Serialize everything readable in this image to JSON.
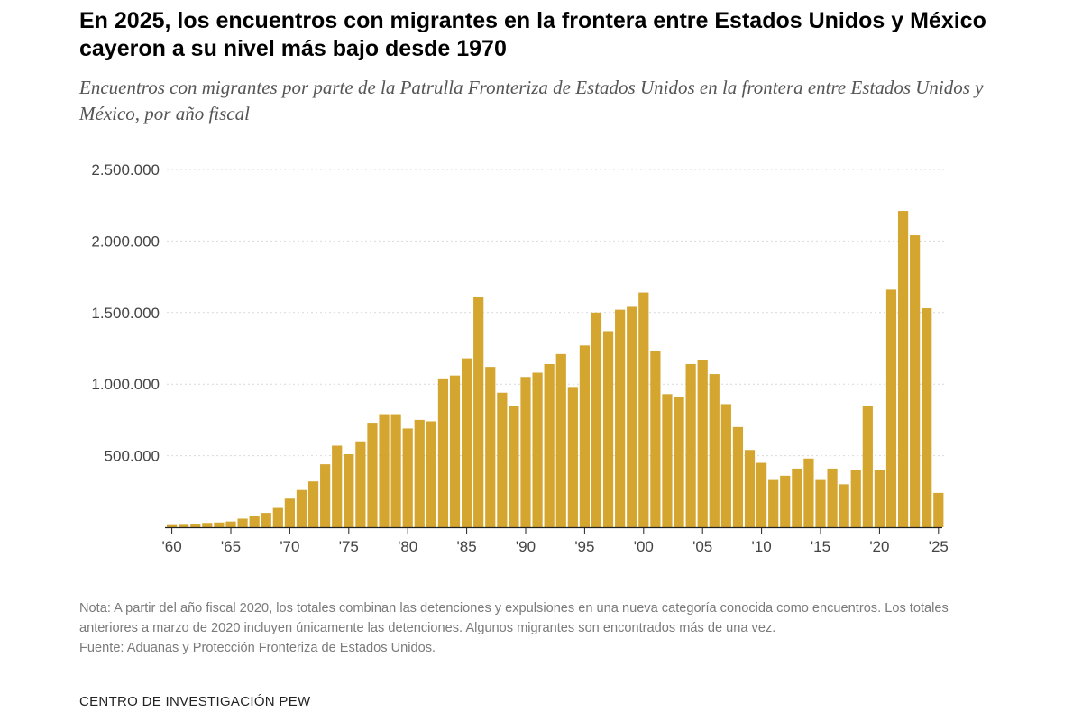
{
  "header": {
    "title": "En 2025, los encuentros con migrantes en la frontera entre Estados Unidos y México cayeron a su nivel más bajo desde 1970",
    "subtitle": "Encuentros con migrantes por parte de la Patrulla Fronteriza de Estados Unidos en la frontera entre Estados Unidos y México, por año fiscal"
  },
  "footer": {
    "note": "Nota: A partir del año fiscal 2020, los totales combinan las detenciones y expulsiones en una nueva categoría conocida como encuentros. Los totales anteriores a marzo de 2020 incluyen únicamente las detenciones. Algunos migrantes son encontrados más de una vez.",
    "source": "Fuente: Aduanas y Protección Fronteriza de Estados Unidos.",
    "organization": "CENTRO DE INVESTIGACIÓN PEW"
  },
  "colors": {
    "bar": "#d4a52f",
    "grid": "#d9d9d9",
    "axis": "#222222"
  },
  "chart_data": {
    "type": "bar",
    "title": "En 2025, los encuentros con migrantes en la frontera entre Estados Unidos y México cayeron a su nivel más bajo desde 1970",
    "xlabel": "",
    "ylabel": "",
    "ylim": [
      0,
      2500000
    ],
    "grid": true,
    "y_ticks": [
      {
        "value": 500000,
        "label": "500.000"
      },
      {
        "value": 1000000,
        "label": "1.000.000"
      },
      {
        "value": 1500000,
        "label": "1.500.000"
      },
      {
        "value": 2000000,
        "label": "2.000.000"
      },
      {
        "value": 2500000,
        "label": "2.500.000"
      }
    ],
    "x_ticks": [
      {
        "year": 1960,
        "label": "'60"
      },
      {
        "year": 1965,
        "label": "'65"
      },
      {
        "year": 1970,
        "label": "'70"
      },
      {
        "year": 1975,
        "label": "'75"
      },
      {
        "year": 1980,
        "label": "'80"
      },
      {
        "year": 1985,
        "label": "'85"
      },
      {
        "year": 1990,
        "label": "'90"
      },
      {
        "year": 1995,
        "label": "'95"
      },
      {
        "year": 2000,
        "label": "'00"
      },
      {
        "year": 2005,
        "label": "'05"
      },
      {
        "year": 2010,
        "label": "'10"
      },
      {
        "year": 2015,
        "label": "'15"
      },
      {
        "year": 2020,
        "label": "'20"
      },
      {
        "year": 2025,
        "label": "'25"
      }
    ],
    "categories": [
      1960,
      1961,
      1962,
      1963,
      1964,
      1965,
      1966,
      1967,
      1968,
      1969,
      1970,
      1971,
      1972,
      1973,
      1974,
      1975,
      1976,
      1977,
      1978,
      1979,
      1980,
      1981,
      1982,
      1983,
      1984,
      1985,
      1986,
      1987,
      1988,
      1989,
      1990,
      1991,
      1992,
      1993,
      1994,
      1995,
      1996,
      1997,
      1998,
      1999,
      2000,
      2001,
      2002,
      2003,
      2004,
      2005,
      2006,
      2007,
      2008,
      2009,
      2010,
      2011,
      2012,
      2013,
      2014,
      2015,
      2016,
      2017,
      2018,
      2019,
      2020,
      2021,
      2022,
      2023,
      2024,
      2025
    ],
    "series": [
      {
        "name": "Encuentros",
        "values": [
          21000,
          23000,
          25000,
          30000,
          33000,
          40000,
          60000,
          80000,
          100000,
          135000,
          200000,
          260000,
          320000,
          440000,
          570000,
          510000,
          600000,
          730000,
          790000,
          790000,
          690000,
          750000,
          740000,
          1040000,
          1060000,
          1180000,
          1610000,
          1120000,
          940000,
          850000,
          1050000,
          1080000,
          1140000,
          1210000,
          980000,
          1270000,
          1500000,
          1370000,
          1520000,
          1540000,
          1640000,
          1230000,
          930000,
          910000,
          1140000,
          1170000,
          1070000,
          860000,
          700000,
          540000,
          450000,
          330000,
          360000,
          410000,
          480000,
          330000,
          410000,
          300000,
          400000,
          850000,
          400000,
          1660000,
          2210000,
          2040000,
          1530000,
          240000
        ]
      }
    ]
  }
}
